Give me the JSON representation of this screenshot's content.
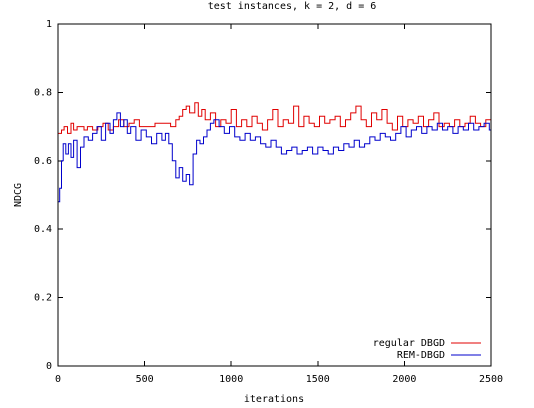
{
  "chart_data": {
    "type": "line",
    "title": "test instances, k = 2, d = 6",
    "xlabel": "iterations",
    "ylabel": "NDCG",
    "xlim": [
      0,
      2500
    ],
    "ylim": [
      0,
      1
    ],
    "x_ticks": [
      0,
      500,
      1000,
      1500,
      2000,
      2500
    ],
    "y_ticks": [
      0,
      0.2,
      0.4,
      0.6,
      0.8,
      1
    ],
    "grid": false,
    "legend_position": "bottom-right",
    "step": true,
    "series": [
      {
        "name": "regular DBGD",
        "color": "#e00000",
        "x": [
          0,
          20,
          35,
          55,
          75,
          90,
          110,
          150,
          170,
          200,
          230,
          260,
          290,
          320,
          350,
          380,
          410,
          440,
          470,
          520,
          560,
          600,
          650,
          680,
          700,
          720,
          740,
          760,
          790,
          810,
          830,
          850,
          880,
          910,
          940,
          970,
          1000,
          1030,
          1060,
          1090,
          1120,
          1150,
          1180,
          1210,
          1240,
          1270,
          1300,
          1330,
          1360,
          1390,
          1420,
          1450,
          1480,
          1510,
          1540,
          1570,
          1600,
          1630,
          1660,
          1690,
          1720,
          1750,
          1780,
          1810,
          1840,
          1870,
          1900,
          1930,
          1960,
          1990,
          2020,
          2050,
          2080,
          2110,
          2140,
          2170,
          2200,
          2230,
          2260,
          2290,
          2320,
          2350,
          2380,
          2410,
          2440,
          2470,
          2500
        ],
        "y": [
          0.68,
          0.69,
          0.7,
          0.68,
          0.71,
          0.69,
          0.7,
          0.69,
          0.7,
          0.69,
          0.7,
          0.71,
          0.69,
          0.7,
          0.72,
          0.7,
          0.71,
          0.72,
          0.7,
          0.7,
          0.71,
          0.71,
          0.7,
          0.72,
          0.73,
          0.75,
          0.76,
          0.74,
          0.77,
          0.73,
          0.75,
          0.72,
          0.74,
          0.7,
          0.72,
          0.71,
          0.75,
          0.7,
          0.72,
          0.7,
          0.73,
          0.71,
          0.69,
          0.72,
          0.75,
          0.7,
          0.72,
          0.71,
          0.76,
          0.7,
          0.73,
          0.71,
          0.7,
          0.73,
          0.71,
          0.72,
          0.73,
          0.7,
          0.72,
          0.74,
          0.76,
          0.72,
          0.7,
          0.74,
          0.72,
          0.75,
          0.71,
          0.69,
          0.73,
          0.7,
          0.72,
          0.71,
          0.73,
          0.7,
          0.72,
          0.74,
          0.7,
          0.71,
          0.7,
          0.72,
          0.7,
          0.71,
          0.73,
          0.71,
          0.7,
          0.72,
          0.7
        ]
      },
      {
        "name": "REM-DBGD",
        "color": "#0000cc",
        "x": [
          0,
          10,
          20,
          30,
          45,
          60,
          75,
          90,
          110,
          130,
          150,
          175,
          200,
          225,
          250,
          275,
          300,
          320,
          340,
          360,
          380,
          400,
          420,
          450,
          480,
          510,
          540,
          570,
          600,
          620,
          640,
          660,
          680,
          700,
          720,
          740,
          760,
          780,
          800,
          820,
          840,
          860,
          880,
          900,
          930,
          960,
          990,
          1020,
          1050,
          1080,
          1110,
          1140,
          1170,
          1200,
          1230,
          1260,
          1290,
          1320,
          1350,
          1380,
          1410,
          1440,
          1470,
          1500,
          1530,
          1560,
          1590,
          1620,
          1650,
          1680,
          1710,
          1740,
          1770,
          1800,
          1830,
          1860,
          1890,
          1920,
          1950,
          1980,
          2010,
          2040,
          2070,
          2100,
          2130,
          2160,
          2190,
          2220,
          2250,
          2280,
          2310,
          2340,
          2370,
          2400,
          2430,
          2460,
          2490,
          2500
        ],
        "y": [
          0.48,
          0.52,
          0.6,
          0.65,
          0.62,
          0.65,
          0.61,
          0.66,
          0.58,
          0.64,
          0.67,
          0.66,
          0.68,
          0.7,
          0.66,
          0.71,
          0.68,
          0.72,
          0.74,
          0.7,
          0.72,
          0.68,
          0.7,
          0.66,
          0.69,
          0.67,
          0.65,
          0.68,
          0.66,
          0.68,
          0.65,
          0.6,
          0.55,
          0.58,
          0.54,
          0.56,
          0.53,
          0.62,
          0.66,
          0.65,
          0.67,
          0.69,
          0.71,
          0.72,
          0.7,
          0.68,
          0.7,
          0.67,
          0.66,
          0.68,
          0.66,
          0.67,
          0.65,
          0.64,
          0.66,
          0.64,
          0.62,
          0.63,
          0.64,
          0.62,
          0.63,
          0.64,
          0.62,
          0.64,
          0.63,
          0.62,
          0.64,
          0.63,
          0.65,
          0.64,
          0.66,
          0.64,
          0.65,
          0.67,
          0.66,
          0.68,
          0.67,
          0.66,
          0.68,
          0.7,
          0.67,
          0.69,
          0.7,
          0.68,
          0.7,
          0.69,
          0.71,
          0.69,
          0.7,
          0.68,
          0.7,
          0.69,
          0.71,
          0.69,
          0.7,
          0.71,
          0.69,
          0.72
        ]
      }
    ]
  }
}
